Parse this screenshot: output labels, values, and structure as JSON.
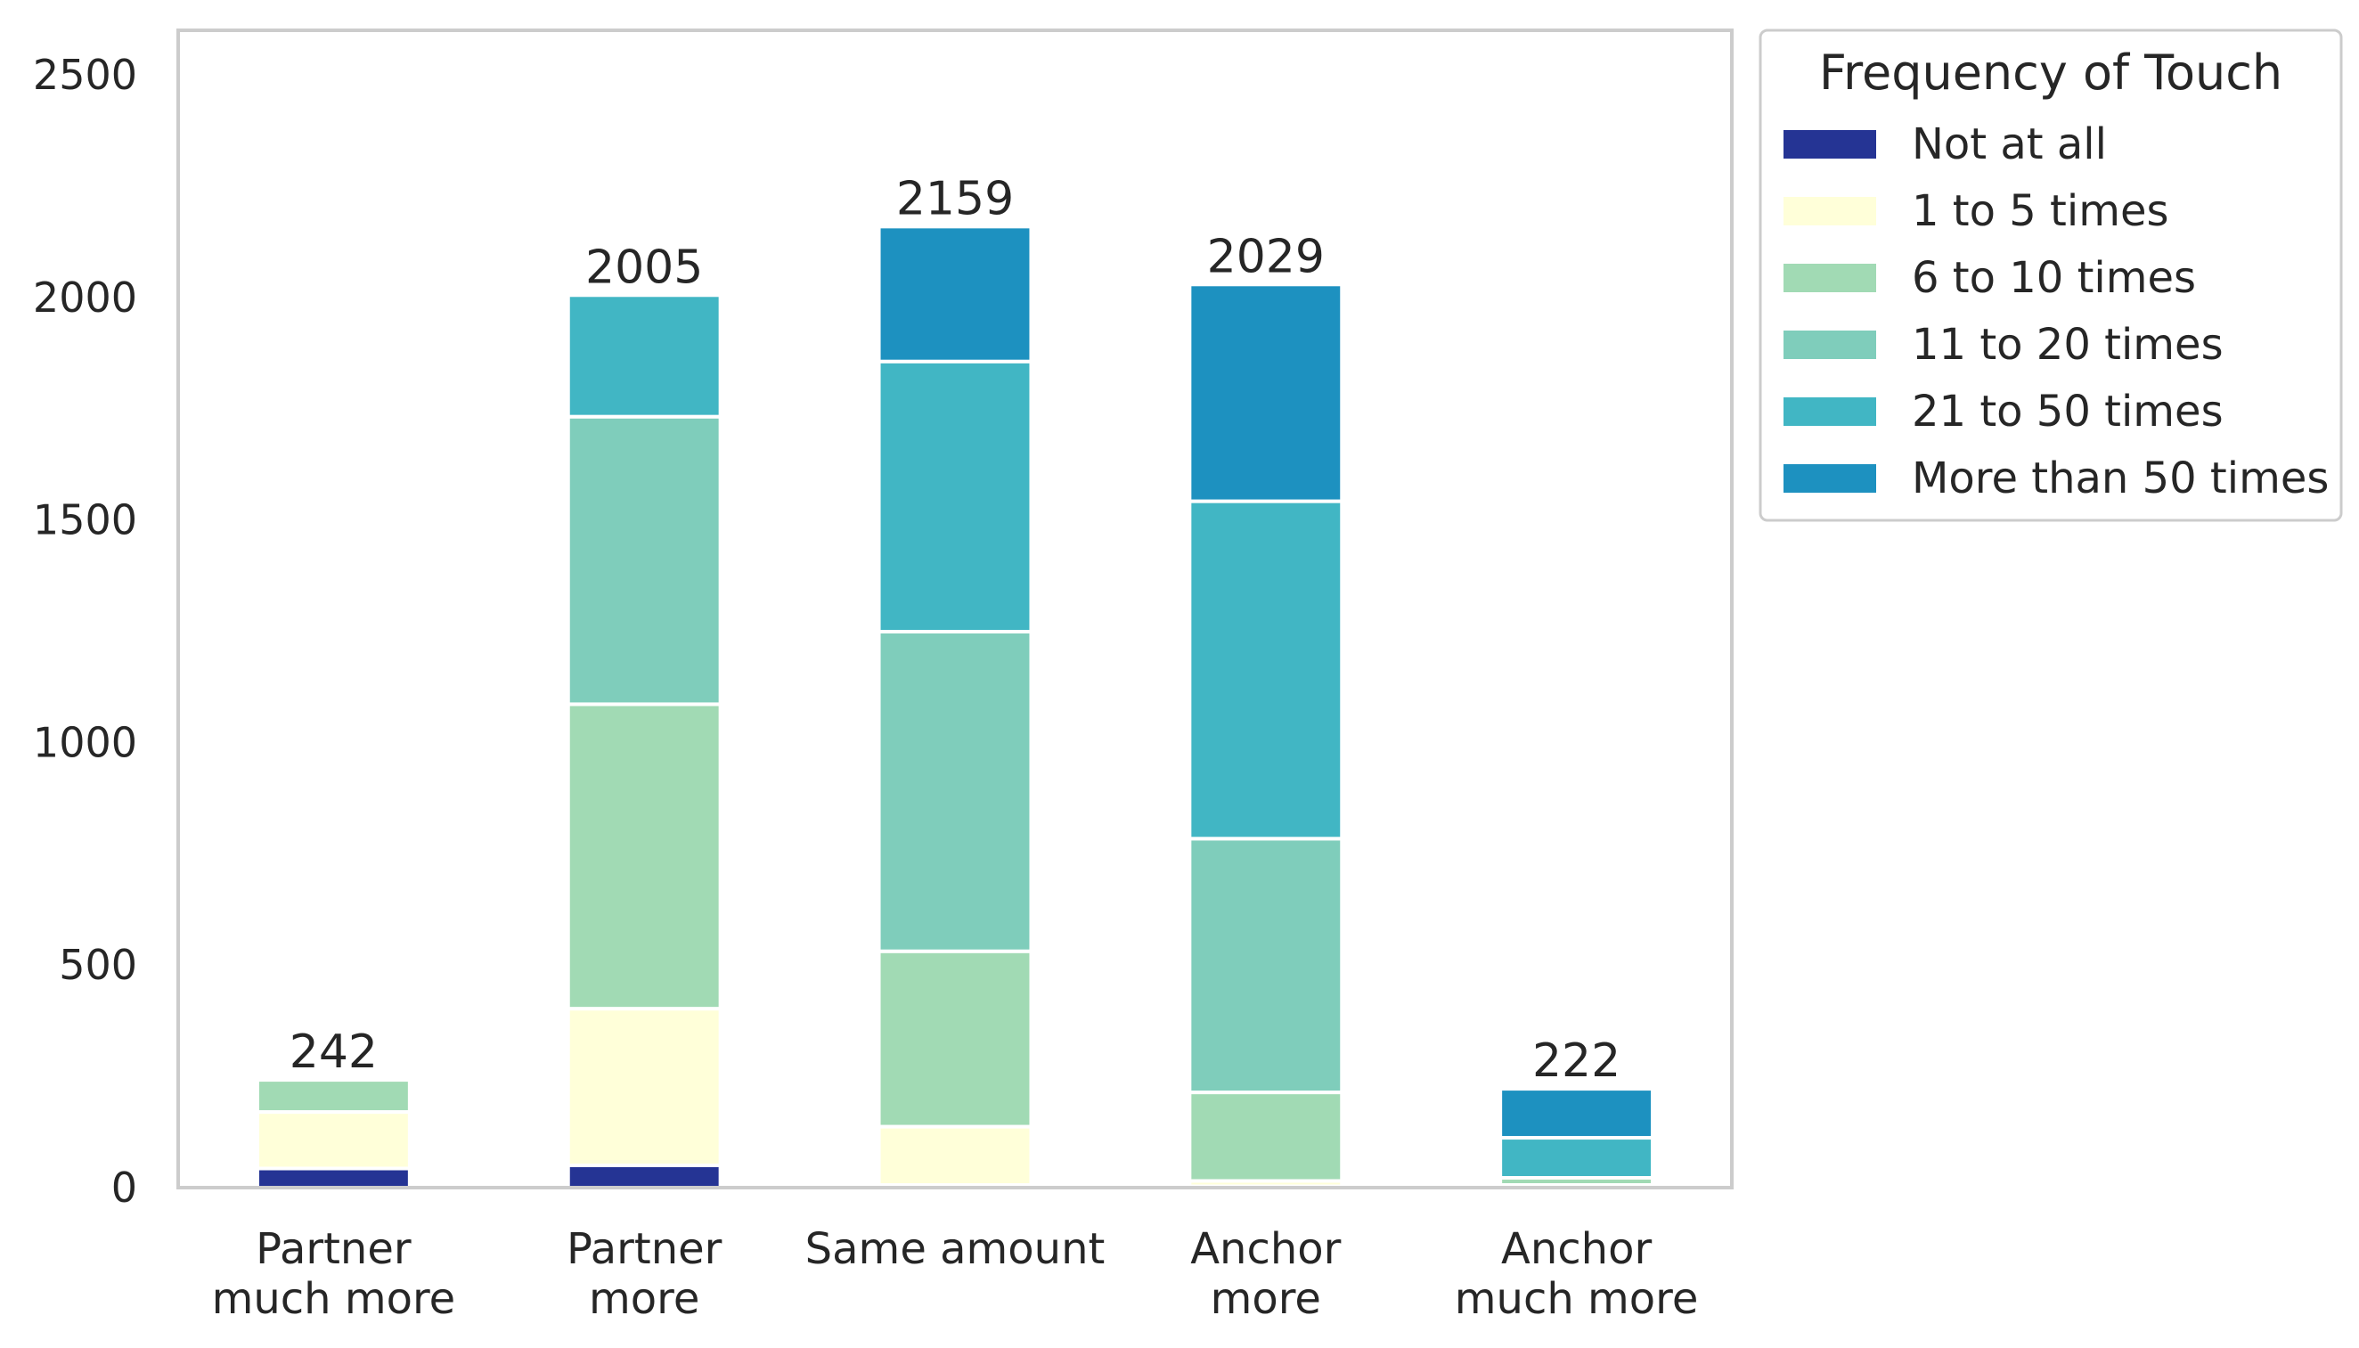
{
  "chart_data": {
    "type": "bar",
    "stacked": true,
    "categories": [
      [
        "Partner",
        "much more"
      ],
      [
        "Partner",
        "more"
      ],
      [
        "Same amount"
      ],
      [
        "Anchor",
        "more"
      ],
      [
        "Anchor",
        "much more"
      ]
    ],
    "totals": [
      "242",
      "2005",
      "2159",
      "2029",
      "222"
    ],
    "series": [
      {
        "name": "Not at all",
        "color": "#253494",
        "values": [
          43,
          50,
          6,
          3,
          2
        ]
      },
      {
        "name": "1 to 5 times",
        "color": "#ffffd9",
        "values": [
          127,
          352,
          131,
          12,
          4
        ]
      },
      {
        "name": "6 to 10 times",
        "color": "#a1dab4",
        "values": [
          72,
          684,
          394,
          199,
          16
        ]
      },
      {
        "name": "11 to 20 times",
        "color": "#7fcdbb",
        "values": [
          0,
          646,
          718,
          570,
          0
        ]
      },
      {
        "name": "21 to 50 times",
        "color": "#41b6c4",
        "values": [
          0,
          273,
          607,
          758,
          90
        ]
      },
      {
        "name": "More than 50 times",
        "color": "#1d91c0",
        "values": [
          0,
          0,
          303,
          487,
          110
        ]
      }
    ],
    "ylim": [
      0,
      2600
    ],
    "yticks": [
      "0",
      "500",
      "1000",
      "1500",
      "2000",
      "2500"
    ],
    "grid": false,
    "legend": {
      "title": "Frequency of Touch",
      "placement": "outside-top-right"
    },
    "xlabel": "",
    "ylabel": ""
  }
}
